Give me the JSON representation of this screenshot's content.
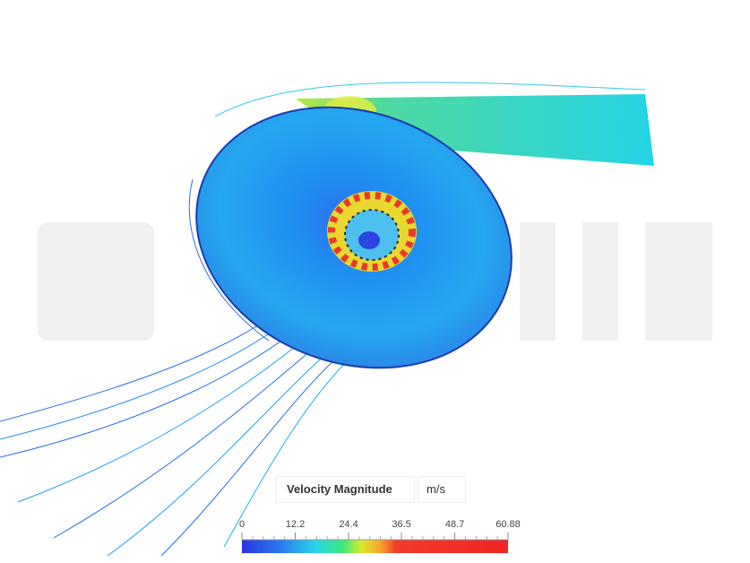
{
  "legend": {
    "title": "Velocity Magnitude",
    "unit": "m/s",
    "ticks": [
      0,
      12.2,
      24.4,
      36.5,
      48.7,
      60.88
    ]
  }
}
